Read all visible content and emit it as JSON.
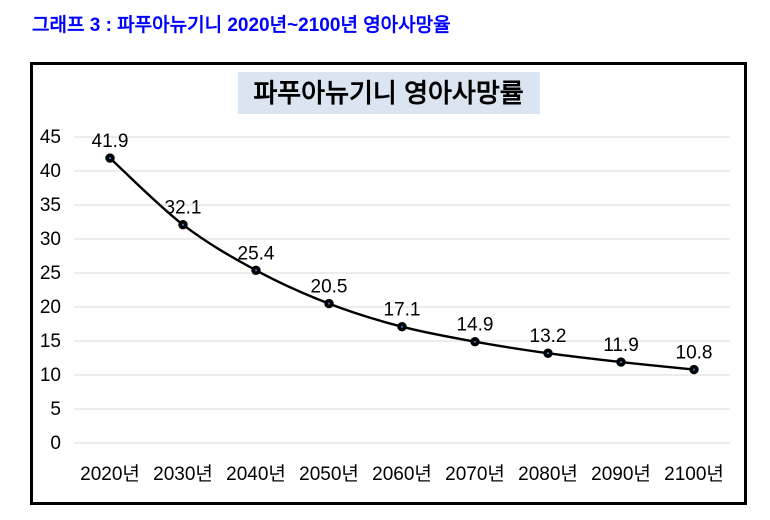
{
  "page": {
    "header_title": "그래프 3 : 파푸아뉴기니 2020년~2100년 영아사망율",
    "header_color": "#0000ff",
    "background": "#ffffff"
  },
  "chart": {
    "title_bg": "#dbe5f1",
    "border_color": "#000000"
  },
  "chart_data": {
    "type": "line",
    "title": "파푸아뉴기니 영아사망률",
    "categories": [
      "2020년",
      "2030년",
      "2040년",
      "2050년",
      "2060년",
      "2070년",
      "2080년",
      "2090년",
      "2100년"
    ],
    "values": [
      41.9,
      32.1,
      25.4,
      20.5,
      17.1,
      14.9,
      13.2,
      11.9,
      10.8
    ],
    "data_labels": [
      "41.9",
      "32.1",
      "25.4",
      "20.5",
      "17.1",
      "14.9",
      "13.2",
      "11.9",
      "10.8"
    ],
    "xlabel": "",
    "ylabel": "",
    "ylim": [
      0,
      45
    ],
    "ytick_step": 5,
    "grid": true,
    "legend": "none",
    "line_color": "#000000",
    "marker_color": "#000000",
    "marker_center_color": "#4472c4",
    "gridline_color": "#d9d9d9",
    "tick_label_color": "#000000",
    "data_label_color": "#000000"
  }
}
